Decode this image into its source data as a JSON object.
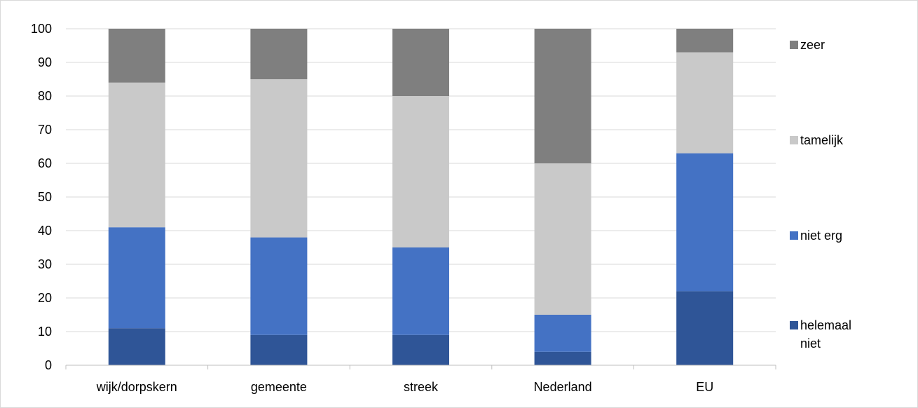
{
  "chart_data": {
    "type": "bar",
    "stacked": true,
    "categories": [
      "wijk/dorpskern",
      "gemeente",
      "streek",
      "Nederland",
      "EU"
    ],
    "series": [
      {
        "name": "helemaal niet",
        "label_lines": [
          "helemaal",
          "niet"
        ],
        "color": "#2f5597",
        "values": [
          11,
          9,
          9,
          4,
          22
        ]
      },
      {
        "name": "niet erg",
        "label_lines": [
          "niet erg"
        ],
        "color": "#4472c4",
        "values": [
          30,
          29,
          26,
          11,
          41
        ]
      },
      {
        "name": "tamelijk",
        "label_lines": [
          "tamelijk"
        ],
        "color": "#c9c9c9",
        "values": [
          43,
          47,
          45,
          45,
          30
        ]
      },
      {
        "name": "zeer",
        "label_lines": [
          "zeer"
        ],
        "color": "#7f7f7f",
        "values": [
          16,
          15,
          20,
          40,
          7
        ]
      }
    ],
    "ylim": [
      0,
      100
    ],
    "yticks": [
      "0",
      "10",
      "20",
      "30",
      "40",
      "50",
      "60",
      "70",
      "80",
      "90",
      "100"
    ],
    "grid": true,
    "legend": "right",
    "title": "",
    "xlabel": "",
    "ylabel": ""
  }
}
